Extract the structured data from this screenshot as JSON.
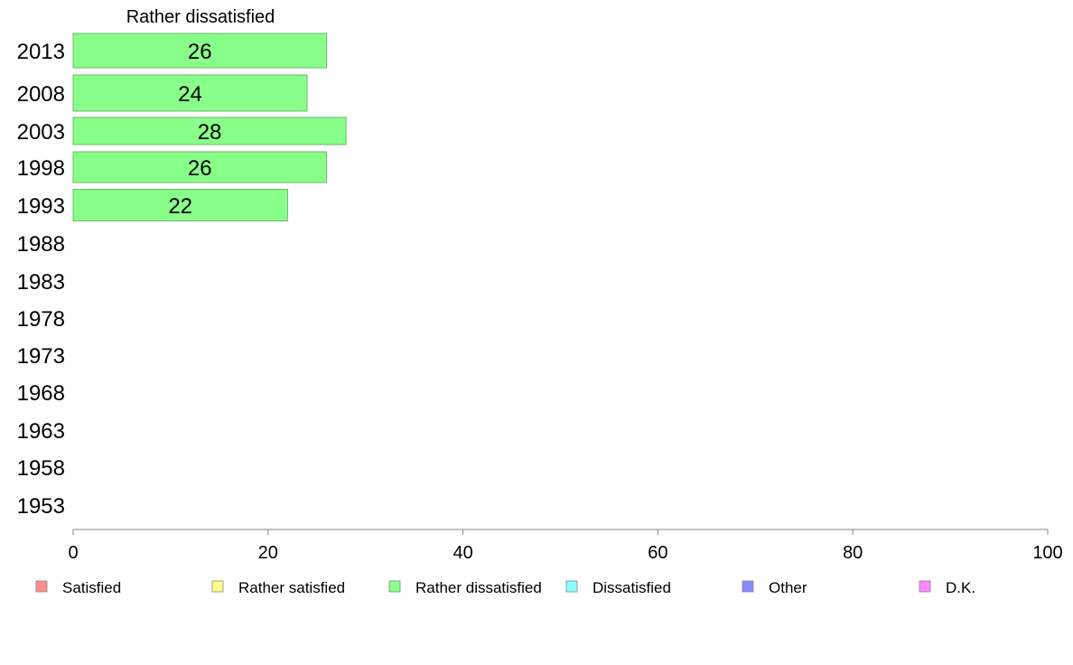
{
  "chart_data": {
    "type": "bar",
    "orientation": "horizontal",
    "title": "Rather dissatisfied",
    "categories": [
      "2013",
      "2008",
      "2003",
      "1998",
      "1993",
      "1988",
      "1983",
      "1978",
      "1973",
      "1968",
      "1963",
      "1958",
      "1953"
    ],
    "series": [
      {
        "name": "Rather dissatisfied",
        "values": [
          26,
          24,
          28,
          26,
          22,
          null,
          null,
          null,
          null,
          null,
          null,
          null,
          null
        ],
        "color": "#88ff88",
        "stroke": "#6ab86a"
      }
    ],
    "x_ticks": [
      "0",
      "20",
      "40",
      "60",
      "80",
      "100"
    ],
    "xlim": [
      0,
      100
    ],
    "grid": false,
    "legend_position": "bottom",
    "legend": [
      {
        "label": "Satisfied",
        "color": "#ff8c8c"
      },
      {
        "label": "Rather satisfied",
        "color": "#ffff88"
      },
      {
        "label": "Rather dissatisfied",
        "color": "#88ff88"
      },
      {
        "label": "Dissatisfied",
        "color": "#88ffff"
      },
      {
        "label": "Other",
        "color": "#8888ff"
      },
      {
        "label": "D.K.",
        "color": "#ff88ff"
      }
    ],
    "axis_color": "#888888"
  }
}
